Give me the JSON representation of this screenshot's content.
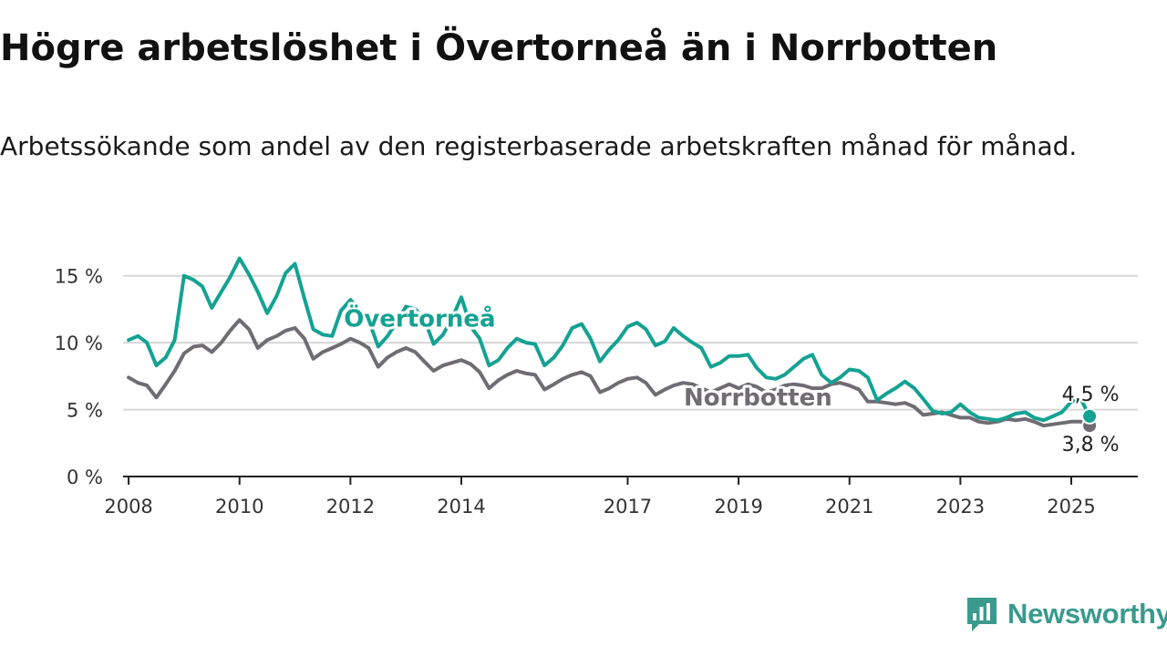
{
  "title": "Högre arbetslöshet i Övertorneå än i Norrbotten",
  "subtitle": "Arbetssökande som andel av den registerbaserade arbetskraften månad för månad.",
  "brand": {
    "name": "Newsworthy",
    "icon": "newsworthy-logo-icon",
    "color": "#3a9a8d"
  },
  "colors": {
    "overtornea": "#14a292",
    "norrbotten": "#6f6c72",
    "grid": "#d7d7d7",
    "axis": "#222222"
  },
  "chart_data": {
    "type": "line",
    "title": "Högre arbetslöshet i Övertorneå än i Norrbotten",
    "xlabel": "",
    "ylabel": "",
    "x_ticks": [
      "2008",
      "2010",
      "2012",
      "2014",
      "2017",
      "2019",
      "2021",
      "2023",
      "2025"
    ],
    "y_ticks": [
      "0 %",
      "5 %",
      "10 %",
      "15 %"
    ],
    "y_tick_values": [
      0,
      5,
      10,
      15
    ],
    "xlim": [
      2007.9,
      2026.2
    ],
    "ylim": [
      0,
      16
    ],
    "grid": true,
    "legend": "inline labels",
    "series": [
      {
        "name": "Norrbotten",
        "label": "Norrbotten",
        "color": "#6f6c72",
        "end_label": "3,8 %",
        "x": [
          2008.0,
          2008.17,
          2008.33,
          2008.5,
          2008.67,
          2008.83,
          2009.0,
          2009.17,
          2009.33,
          2009.5,
          2009.67,
          2009.83,
          2010.0,
          2010.17,
          2010.33,
          2010.5,
          2010.67,
          2010.83,
          2011.0,
          2011.17,
          2011.33,
          2011.5,
          2011.67,
          2011.83,
          2012.0,
          2012.17,
          2012.33,
          2012.5,
          2012.67,
          2012.83,
          2013.0,
          2013.17,
          2013.33,
          2013.5,
          2013.67,
          2013.83,
          2014.0,
          2014.17,
          2014.33,
          2014.5,
          2014.67,
          2014.83,
          2015.0,
          2015.17,
          2015.33,
          2015.5,
          2015.67,
          2015.83,
          2016.0,
          2016.17,
          2016.33,
          2016.5,
          2016.67,
          2016.83,
          2017.0,
          2017.17,
          2017.33,
          2017.5,
          2017.67,
          2017.83,
          2018.0,
          2018.17,
          2018.33,
          2018.5,
          2018.67,
          2018.83,
          2019.0,
          2019.17,
          2019.33,
          2019.5,
          2019.67,
          2019.83,
          2020.0,
          2020.17,
          2020.33,
          2020.5,
          2020.67,
          2020.83,
          2021.0,
          2021.17,
          2021.33,
          2021.5,
          2021.67,
          2021.83,
          2022.0,
          2022.17,
          2022.33,
          2022.5,
          2022.67,
          2022.83,
          2023.0,
          2023.17,
          2023.33,
          2023.5,
          2023.67,
          2023.83,
          2024.0,
          2024.17,
          2024.33,
          2024.5,
          2024.67,
          2024.83,
          2025.0,
          2025.17,
          2025.33
        ],
        "values": [
          7.4,
          7.0,
          6.8,
          5.9,
          6.9,
          7.9,
          9.2,
          9.7,
          9.8,
          9.3,
          10.0,
          10.9,
          11.7,
          11.0,
          9.6,
          10.2,
          10.5,
          10.9,
          11.1,
          10.3,
          8.8,
          9.3,
          9.6,
          9.9,
          10.3,
          10.0,
          9.6,
          8.2,
          8.9,
          9.3,
          9.6,
          9.3,
          8.6,
          7.9,
          8.3,
          8.5,
          8.7,
          8.4,
          7.8,
          6.6,
          7.2,
          7.6,
          7.9,
          7.7,
          7.6,
          6.5,
          6.9,
          7.3,
          7.6,
          7.8,
          7.5,
          6.3,
          6.6,
          7.0,
          7.3,
          7.4,
          7.0,
          6.1,
          6.5,
          6.8,
          7.0,
          6.9,
          6.6,
          6.3,
          6.6,
          6.9,
          6.6,
          6.9,
          6.7,
          6.3,
          6.5,
          6.8,
          6.9,
          6.8,
          6.6,
          6.6,
          6.9,
          7.0,
          6.8,
          6.5,
          5.6,
          5.6,
          5.5,
          5.4,
          5.5,
          5.2,
          4.6,
          4.7,
          4.8,
          4.6,
          4.4,
          4.4,
          4.1,
          4.0,
          4.1,
          4.3,
          4.2,
          4.3,
          4.1,
          3.8,
          3.9,
          4.0,
          4.1,
          4.1,
          3.8
        ]
      },
      {
        "name": "Övertorneå",
        "label": "Övertorneå",
        "color": "#14a292",
        "end_label": "4,5 %",
        "x": [
          2008.0,
          2008.17,
          2008.33,
          2008.5,
          2008.67,
          2008.83,
          2009.0,
          2009.17,
          2009.33,
          2009.5,
          2009.67,
          2009.83,
          2010.0,
          2010.17,
          2010.33,
          2010.5,
          2010.67,
          2010.83,
          2011.0,
          2011.17,
          2011.33,
          2011.5,
          2011.67,
          2011.83,
          2012.0,
          2012.17,
          2012.33,
          2012.5,
          2012.67,
          2012.83,
          2013.0,
          2013.17,
          2013.33,
          2013.5,
          2013.67,
          2013.83,
          2014.0,
          2014.17,
          2014.33,
          2014.5,
          2014.67,
          2014.83,
          2015.0,
          2015.17,
          2015.33,
          2015.5,
          2015.67,
          2015.83,
          2016.0,
          2016.17,
          2016.33,
          2016.5,
          2016.67,
          2016.83,
          2017.0,
          2017.17,
          2017.33,
          2017.5,
          2017.67,
          2017.83,
          2018.0,
          2018.17,
          2018.33,
          2018.5,
          2018.67,
          2018.83,
          2019.0,
          2019.17,
          2019.33,
          2019.5,
          2019.67,
          2019.83,
          2020.0,
          2020.17,
          2020.33,
          2020.5,
          2020.67,
          2020.83,
          2021.0,
          2021.17,
          2021.33,
          2021.5,
          2021.67,
          2021.83,
          2022.0,
          2022.17,
          2022.33,
          2022.5,
          2022.67,
          2022.83,
          2023.0,
          2023.17,
          2023.33,
          2023.5,
          2023.67,
          2023.83,
          2024.0,
          2024.17,
          2024.33,
          2024.5,
          2024.67,
          2024.83,
          2025.0,
          2025.17,
          2025.33
        ],
        "values": [
          10.2,
          10.5,
          10.0,
          8.3,
          8.9,
          10.2,
          15.0,
          14.7,
          14.2,
          12.6,
          13.8,
          14.9,
          16.3,
          15.1,
          13.8,
          12.2,
          13.5,
          15.2,
          15.9,
          13.3,
          11.0,
          10.6,
          10.5,
          12.4,
          13.2,
          12.4,
          11.7,
          9.7,
          10.5,
          11.5,
          12.7,
          12.5,
          11.8,
          9.9,
          10.6,
          11.8,
          13.4,
          11.2,
          10.3,
          8.3,
          8.7,
          9.6,
          10.3,
          10.0,
          9.9,
          8.3,
          8.9,
          9.8,
          11.1,
          11.4,
          10.3,
          8.6,
          9.5,
          10.2,
          11.2,
          11.5,
          11.0,
          9.8,
          10.1,
          11.1,
          10.5,
          10.0,
          9.6,
          8.2,
          8.5,
          9.0,
          9.0,
          9.1,
          8.1,
          7.4,
          7.3,
          7.6,
          8.2,
          8.8,
          9.1,
          7.6,
          7.0,
          7.4,
          8.0,
          7.9,
          7.4,
          5.7,
          6.2,
          6.6,
          7.1,
          6.6,
          5.8,
          4.9,
          4.7,
          4.8,
          5.4,
          4.8,
          4.4,
          4.3,
          4.2,
          4.4,
          4.7,
          4.8,
          4.4,
          4.2,
          4.5,
          4.8,
          5.6,
          5.8,
          4.5
        ]
      }
    ]
  }
}
